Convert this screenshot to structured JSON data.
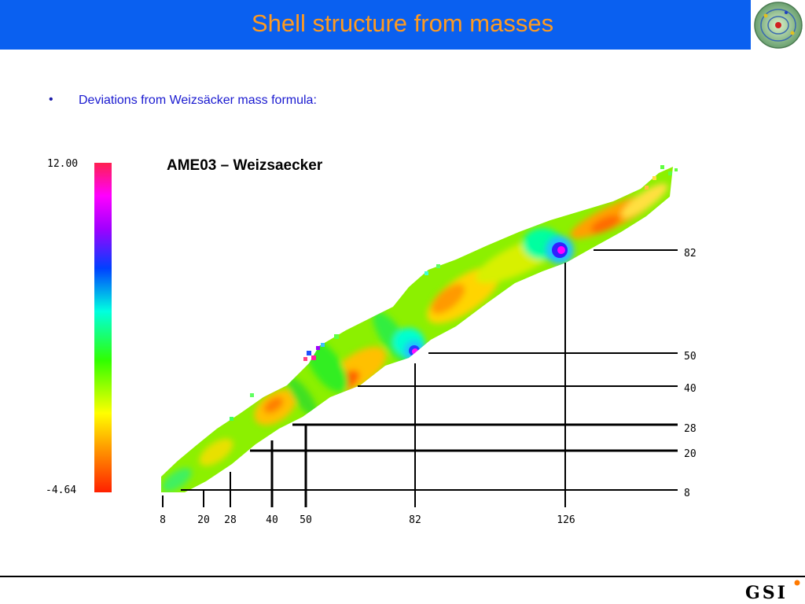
{
  "header": {
    "title": "Shell structure from masses",
    "title_color": "#ff9a1f",
    "bar_color": "#0a60f0",
    "logo": "atom-logo-icon"
  },
  "bullet": {
    "marker": "•",
    "text": "Deviations from Weizsäcker mass formula:"
  },
  "chart_data": {
    "type": "heatmap",
    "title": "AME03 – Weizsaecker",
    "colorbar": {
      "max_label": "12.00",
      "min_label": "-4.64",
      "range": [
        -4.64,
        12.0
      ],
      "colors": [
        "#ff2000",
        "#ffe000",
        "#30ff00",
        "#00ffe0",
        "#0040ff",
        "#ff00ff",
        "#ff2050"
      ]
    },
    "x_axis": {
      "label": "",
      "magic_numbers": [
        "8",
        "20",
        "28",
        "40",
        "50",
        "82",
        "126"
      ]
    },
    "y_axis": {
      "label": "",
      "magic_numbers": [
        "8",
        "20",
        "28",
        "40",
        "50",
        "82"
      ]
    },
    "shell_closures": [
      {
        "N": 28,
        "Z": 28,
        "value": 0.5
      },
      {
        "N": 50,
        "Z": 50,
        "value": 12.0
      },
      {
        "N": 82,
        "Z": 50,
        "value": 11.5
      },
      {
        "N": 126,
        "Z": 82,
        "value": 10.5
      },
      {
        "N": 40,
        "Z": 40,
        "value": -3.5
      }
    ]
  },
  "footer": {
    "logo_text": "GSI",
    "logo_color": "#ff7a00"
  }
}
